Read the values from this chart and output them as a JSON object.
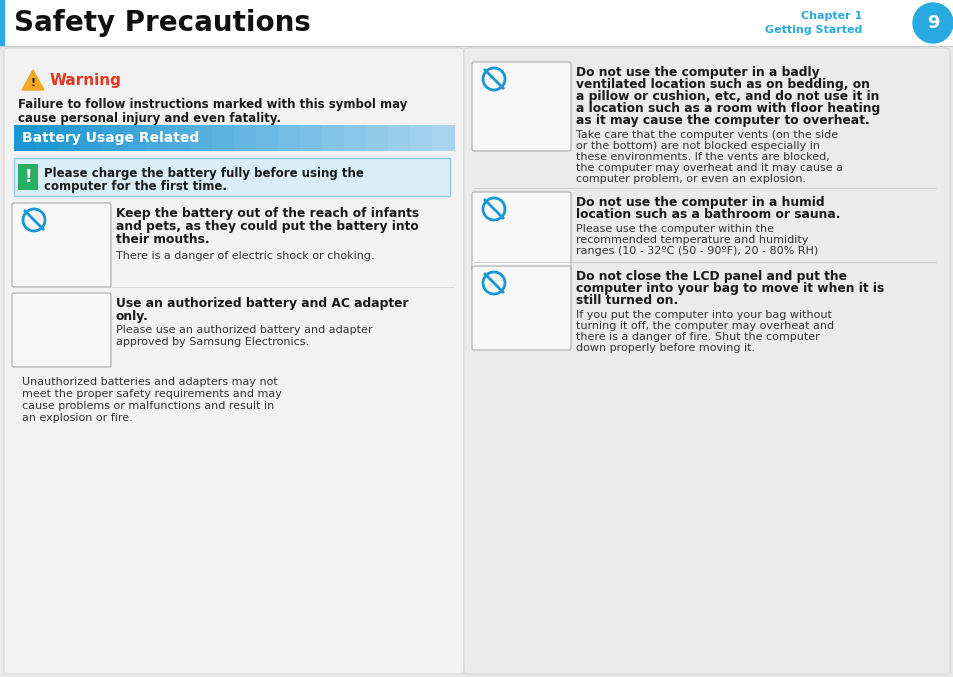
{
  "page_bg": "#e8e8e8",
  "header_bg": "#ffffff",
  "header_title": "Safety Precautions",
  "header_chapter": "Chapter 1",
  "header_subtitle": "Getting Started",
  "header_page_num": "9",
  "header_circle_color": "#29abe2",
  "header_text_color": "#29abe2",
  "left_panel_bg": "#f2f2f2",
  "right_panel_bg": "#ebebeb",
  "warning_color": "#e8351e",
  "warning_title": "Warning",
  "warning_desc1": "Failure to follow instructions marked with this symbol may",
  "warning_desc2": "cause personal injury and even fatality.",
  "battery_header_text": "Battery Usage Related",
  "notice_text1": "Please charge the battery fully before using the",
  "notice_text2": "computer for the first time.",
  "s1_title1": "Keep the battery out of the reach of infants",
  "s1_title2": "and pets, as they could put the battery into",
  "s1_title3": "their mouths.",
  "s1_body": "There is a danger of electric shock or choking.",
  "s2_title1": "Use an authorized battery and AC adapter",
  "s2_title2": "only.",
  "s2_body1": "Please use an authorized battery and adapter",
  "s2_body2": "approved by Samsung Electronics.",
  "s2_body3": "Unauthorized batteries and adapters may not",
  "s2_body4": "meet the proper safety requirements and may",
  "s2_body5": "cause problems or malfunctions and result in",
  "s2_body6": "an explosion or fire.",
  "r1_title1": "Do not use the computer in a badly",
  "r1_title2": "ventilated location such as on bedding, on",
  "r1_title3": "a pillow or cushion, etc, and do not use it in",
  "r1_title4": "a location such as a room with floor heating",
  "r1_title5": "as it may cause the computer to overheat.",
  "r1_body1": "Take care that the computer vents (on the side",
  "r1_body2": "or the bottom) are not blocked especially in",
  "r1_body3": "these environments. If the vents are blocked,",
  "r1_body4": "the computer may overheat and it may cause a",
  "r1_body5": "computer problem, or even an explosion.",
  "r2_title1": "Do not use the computer in a humid",
  "r2_title2": "location such as a bathroom or sauna.",
  "r2_body1": "Please use the computer within the",
  "r2_body2": "recommended temperature and humidity",
  "r2_body3": "ranges (10 - 32ºC (50 - 90ºF), 20 - 80% RH)",
  "r3_title1": "Do not close the LCD panel and put the",
  "r3_title2": "computer into your bag to move it when it is",
  "r3_title3": "still turned on.",
  "r3_body1": "If you put the computer into your bag without",
  "r3_body2": "turning it off, the computer may overheat and",
  "r3_body3": "there is a danger of fire. Shut the computer",
  "r3_body4": "down properly before moving it.",
  "blue_color": "#29abe2",
  "dark_text": "#1a1a1a",
  "body_text": "#333333",
  "left_blue_bar": "#29abe2"
}
